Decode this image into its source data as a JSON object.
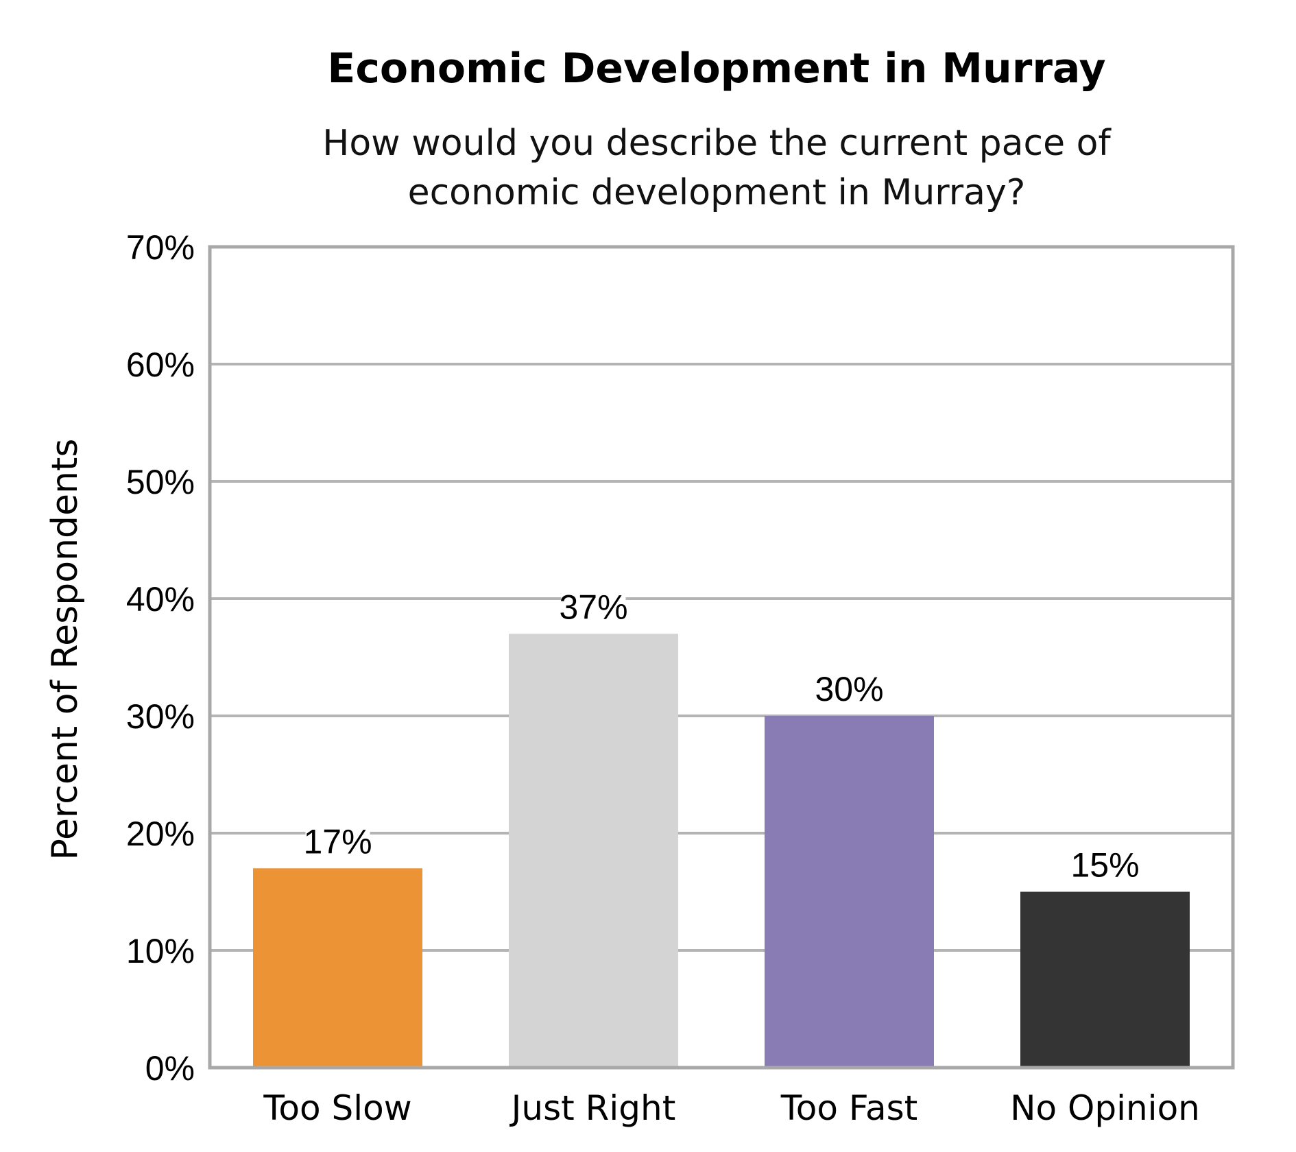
{
  "chart_data": {
    "type": "bar",
    "title": "Economic Development in Murray",
    "subtitle_lines": [
      "How would you describe the current pace of",
      "economic development in Murray?"
    ],
    "xlabel": "",
    "ylabel": "Percent of Respondents",
    "categories": [
      "Too Slow",
      "Just Right",
      "Too Fast",
      "No Opinion"
    ],
    "values": [
      17,
      37,
      30,
      15
    ],
    "data_labels": [
      "17%",
      "37%",
      "30%",
      "15%"
    ],
    "ylim": [
      0,
      70
    ],
    "yticks": [
      0,
      10,
      20,
      30,
      40,
      50,
      60,
      70
    ],
    "ytick_labels": [
      "0%",
      "10%",
      "20%",
      "30%",
      "40%",
      "50%",
      "60%",
      "70%"
    ],
    "grid": true,
    "legend": "none",
    "colors": {
      "bars": [
        "#EB9335",
        "#D4D4D4",
        "#897CB4",
        "#343434"
      ],
      "grid": "#B4B4B4",
      "frame": "#A8A8A8"
    }
  }
}
